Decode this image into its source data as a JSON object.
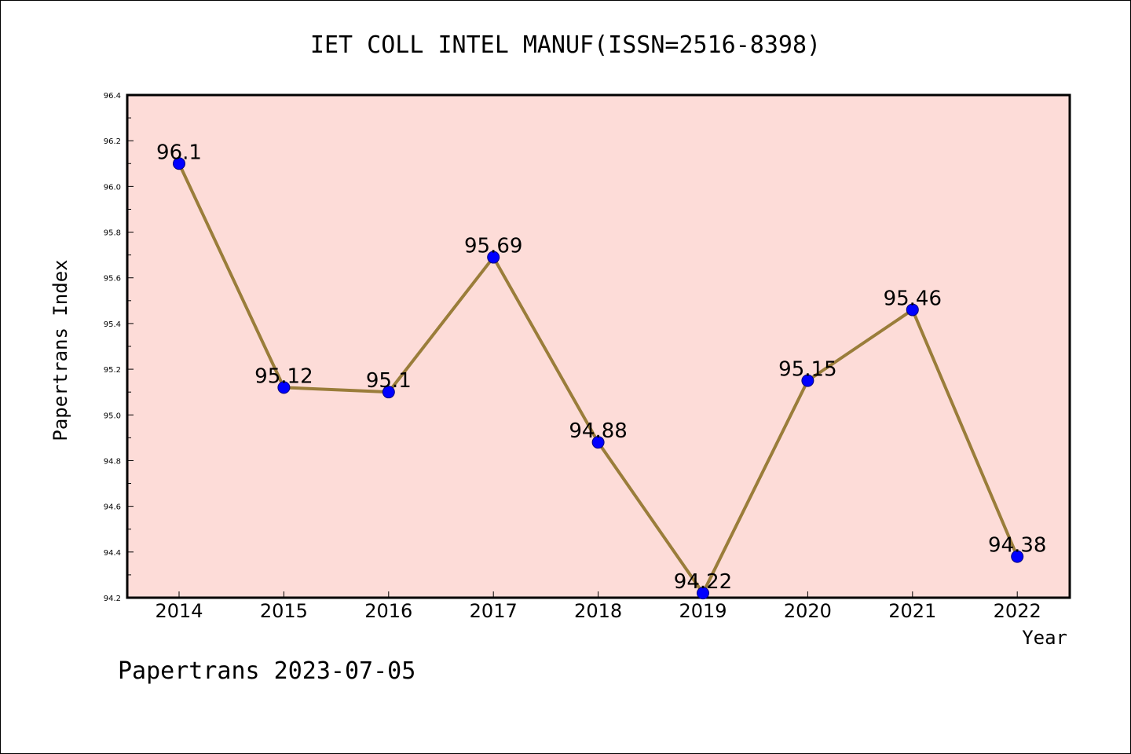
{
  "chart_data": {
    "type": "line",
    "title": "IET COLL INTEL MANUF(ISSN=2516-8398)",
    "xlabel": "Year",
    "ylabel": "Papertrans Index",
    "categories": [
      "2014",
      "2015",
      "2016",
      "2017",
      "2018",
      "2019",
      "2020",
      "2021",
      "2022"
    ],
    "series": [
      {
        "values": [
          96.1,
          95.12,
          95.1,
          95.69,
          94.88,
          94.22,
          95.15,
          95.46,
          94.38
        ]
      }
    ],
    "data_labels": [
      "96.1",
      "95.12",
      "95.1",
      "95.69",
      "94.88",
      "94.22",
      "95.15",
      "95.46",
      "94.38"
    ],
    "ylim": [
      94.2,
      96.4
    ],
    "yticks": [
      "94.2",
      "94.4",
      "94.6",
      "94.8",
      "95.0",
      "95.2",
      "95.4",
      "95.6",
      "95.8",
      "96.0",
      "96.2",
      "96.4"
    ],
    "grid": false,
    "legend": "none",
    "colors": {
      "plot_background": "#fddcd8",
      "line": "#9a7d3a",
      "marker": "#0000ff"
    }
  },
  "footer": {
    "text": "Papertrans 2023-07-05"
  }
}
